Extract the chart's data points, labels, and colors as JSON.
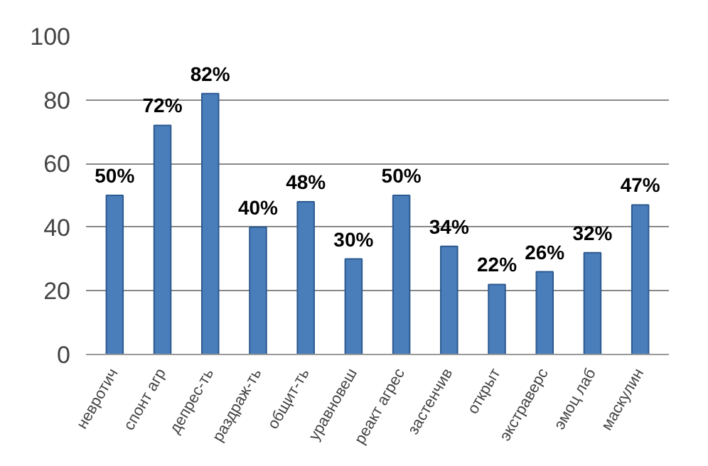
{
  "chart_data": {
    "type": "bar",
    "categories": [
      "невротич",
      "спонт агр",
      "депрес-ть",
      "раздраж-ть",
      "общит-ть",
      "уравновеш",
      "реакт агрес",
      "застенчив",
      "открыт",
      "экстраверс",
      "эмоц лаб",
      "маскулин"
    ],
    "values": [
      50,
      72,
      82,
      40,
      48,
      30,
      50,
      34,
      22,
      26,
      32,
      47
    ],
    "value_labels": [
      "50%",
      "72%",
      "82%",
      "40%",
      "48%",
      "30%",
      "50%",
      "34%",
      "22%",
      "26%",
      "32%",
      "47%"
    ],
    "color": "#4a7ebb",
    "ylim": [
      0,
      100
    ],
    "yticks": [
      0,
      20,
      40,
      60,
      80,
      100
    ],
    "grid": "y"
  }
}
